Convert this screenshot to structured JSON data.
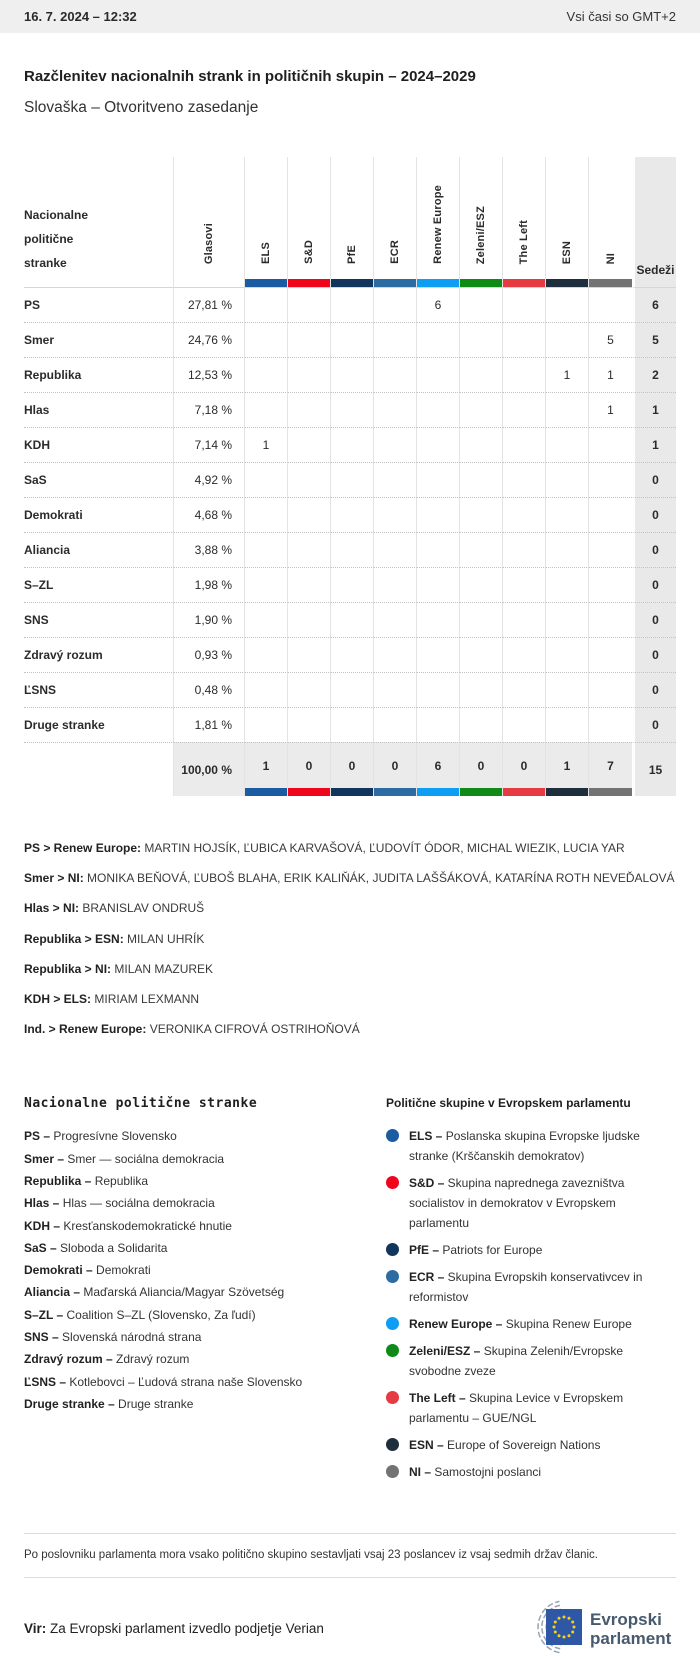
{
  "topbar": {
    "datetime": "16. 7. 2024 – 12:32",
    "timezone": "Vsi časi so GMT+2"
  },
  "title": "Razčlenitev nacionalnih strank in političnih skupin – 2024–2029",
  "subtitle": "Slovaška – Otvoritveno zasedanje",
  "table": {
    "first_col_header": "Nacionalne politične stranke",
    "votes_header": "Glasovi",
    "seats_header": "Sedeži",
    "groups": [
      {
        "id": "ELS",
        "color": "#1a5ba2"
      },
      {
        "id": "S&D",
        "color": "#f0061c"
      },
      {
        "id": "PfE",
        "color": "#12355e"
      },
      {
        "id": "ECR",
        "color": "#2d6ca3"
      },
      {
        "id": "Renew Europe",
        "color": "#0d9df2"
      },
      {
        "id": "Zeleni/ESZ",
        "color": "#108a17"
      },
      {
        "id": "The Left",
        "color": "#e73b44"
      },
      {
        "id": "ESN",
        "color": "#1f2e3d"
      },
      {
        "id": "NI",
        "color": "#737373"
      }
    ],
    "rows": [
      {
        "party": "PS",
        "votes": "27,81 %",
        "cells": [
          "",
          "",
          "",
          "",
          "6",
          "",
          "",
          "",
          ""
        ],
        "seats": "6"
      },
      {
        "party": "Smer",
        "votes": "24,76 %",
        "cells": [
          "",
          "",
          "",
          "",
          "",
          "",
          "",
          "",
          "5"
        ],
        "seats": "5"
      },
      {
        "party": "Republika",
        "votes": "12,53 %",
        "cells": [
          "",
          "",
          "",
          "",
          "",
          "",
          "",
          "1",
          "1"
        ],
        "seats": "2"
      },
      {
        "party": "Hlas",
        "votes": "7,18 %",
        "cells": [
          "",
          "",
          "",
          "",
          "",
          "",
          "",
          "",
          "1"
        ],
        "seats": "1"
      },
      {
        "party": "KDH",
        "votes": "7,14 %",
        "cells": [
          "1",
          "",
          "",
          "",
          "",
          "",
          "",
          "",
          ""
        ],
        "seats": "1"
      },
      {
        "party": "SaS",
        "votes": "4,92 %",
        "cells": [
          "",
          "",
          "",
          "",
          "",
          "",
          "",
          "",
          ""
        ],
        "seats": "0"
      },
      {
        "party": "Demokrati",
        "votes": "4,68 %",
        "cells": [
          "",
          "",
          "",
          "",
          "",
          "",
          "",
          "",
          ""
        ],
        "seats": "0"
      },
      {
        "party": "Aliancia",
        "votes": "3,88 %",
        "cells": [
          "",
          "",
          "",
          "",
          "",
          "",
          "",
          "",
          ""
        ],
        "seats": "0"
      },
      {
        "party": "S–ZL",
        "votes": "1,98 %",
        "cells": [
          "",
          "",
          "",
          "",
          "",
          "",
          "",
          "",
          ""
        ],
        "seats": "0"
      },
      {
        "party": "SNS",
        "votes": "1,90 %",
        "cells": [
          "",
          "",
          "",
          "",
          "",
          "",
          "",
          "",
          ""
        ],
        "seats": "0"
      },
      {
        "party": "Zdravý rozum",
        "votes": "0,93 %",
        "cells": [
          "",
          "",
          "",
          "",
          "",
          "",
          "",
          "",
          ""
        ],
        "seats": "0"
      },
      {
        "party": "ĽSNS",
        "votes": "0,48 %",
        "cells": [
          "",
          "",
          "",
          "",
          "",
          "",
          "",
          "",
          ""
        ],
        "seats": "0"
      },
      {
        "party": "Druge stranke",
        "votes": "1,81 %",
        "cells": [
          "",
          "",
          "",
          "",
          "",
          "",
          "",
          "",
          ""
        ],
        "seats": "0"
      }
    ],
    "total": {
      "votes": "100,00 %",
      "cells": [
        "1",
        "0",
        "0",
        "0",
        "6",
        "0",
        "0",
        "1",
        "7"
      ],
      "seats": "15"
    }
  },
  "delegations": [
    {
      "label": "PS > Renew Europe:",
      "names": "MARTIN HOJSÍK, ĽUBICA KARVAŠOVÁ, ĽUDOVÍT ÓDOR, MICHAL WIEZIK, LUCIA YAR"
    },
    {
      "label": "Smer > NI:",
      "names": "MONIKA BEŇOVÁ, ĽUBOŠ BLAHA, ERIK KALIŇÁK, JUDITA LAŠŠÁKOVÁ, KATARÍNA ROTH NEVEĎALOVÁ"
    },
    {
      "label": "Hlas > NI:",
      "names": "BRANISLAV ONDRUŠ"
    },
    {
      "label": "Republika > ESN:",
      "names": "MILAN UHRÍK"
    },
    {
      "label": "Republika > NI:",
      "names": "MILAN MAZUREK"
    },
    {
      "label": "KDH > ELS:",
      "names": "MIRIAM LEXMANN"
    },
    {
      "label": "Ind. > Renew Europe:",
      "names": "VERONIKA CIFROVÁ OSTRIHOŇOVÁ"
    }
  ],
  "party_legend": {
    "title": "Nacionalne politične stranke",
    "items": [
      {
        "abbr": "PS –",
        "name": "Progresívne Slovensko"
      },
      {
        "abbr": "Smer –",
        "name": "Smer — sociálna demokracia"
      },
      {
        "abbr": "Republika –",
        "name": "Republika"
      },
      {
        "abbr": "Hlas –",
        "name": "Hlas — sociálna demokracia"
      },
      {
        "abbr": "KDH –",
        "name": "Kresťanskodemokratické hnutie"
      },
      {
        "abbr": "SaS –",
        "name": "Sloboda a Solidarita"
      },
      {
        "abbr": "Demokrati –",
        "name": "Demokrati"
      },
      {
        "abbr": "Aliancia –",
        "name": "Maďarská Aliancia/Magyar Szövetség"
      },
      {
        "abbr": "S–ZL –",
        "name": "Coalition S–ZL (Slovensko, Za ľudí)"
      },
      {
        "abbr": "SNS –",
        "name": "Slovenská národná strana"
      },
      {
        "abbr": "Zdravý rozum –",
        "name": "Zdravý rozum"
      },
      {
        "abbr": "ĽSNS –",
        "name": "Kotlebovci – Ľudová strana naše Slovensko"
      },
      {
        "abbr": "Druge stranke –",
        "name": "Druge stranke"
      }
    ]
  },
  "group_legend": {
    "title": "Politične skupine v Evropskem parlamentu",
    "items": [
      {
        "abbr": "ELS –",
        "name": "Poslanska skupina Evropske ljudske stranke (Krščanskih demokratov)",
        "color": "#1a5ba2"
      },
      {
        "abbr": "S&D –",
        "name": "Skupina naprednega zavezništva socialistov in demokratov v Evropskem parlamentu",
        "color": "#f0061c"
      },
      {
        "abbr": "PfE –",
        "name": "Patriots for Europe",
        "color": "#12355e"
      },
      {
        "abbr": "ECR –",
        "name": "Skupina Evropskih konservativcev in reformistov",
        "color": "#2d6ca3"
      },
      {
        "abbr": "Renew Europe –",
        "name": "Skupina Renew Europe",
        "color": "#0d9df2"
      },
      {
        "abbr": "Zeleni/ESZ –",
        "name": "Skupina Zelenih/Evropske svobodne zveze",
        "color": "#108a17"
      },
      {
        "abbr": "The Left –",
        "name": "Skupina Levice v Evropskem parlamentu – GUE/NGL",
        "color": "#e73b44"
      },
      {
        "abbr": "ESN –",
        "name": "Europe of Sovereign Nations",
        "color": "#1f2e3d"
      },
      {
        "abbr": "NI –",
        "name": "Samostojni poslanci",
        "color": "#737373"
      }
    ]
  },
  "footnote": "Po poslovniku parlamenta mora vsako politično skupino sestavljati vsaj 23 poslancev iz vsaj sedmih držav članic.",
  "source": {
    "label": "Vir:",
    "text": "Za Evropski parlament izvedlo podjetje Verian"
  },
  "logo": {
    "line1": "Evropski",
    "line2": "parlament"
  }
}
